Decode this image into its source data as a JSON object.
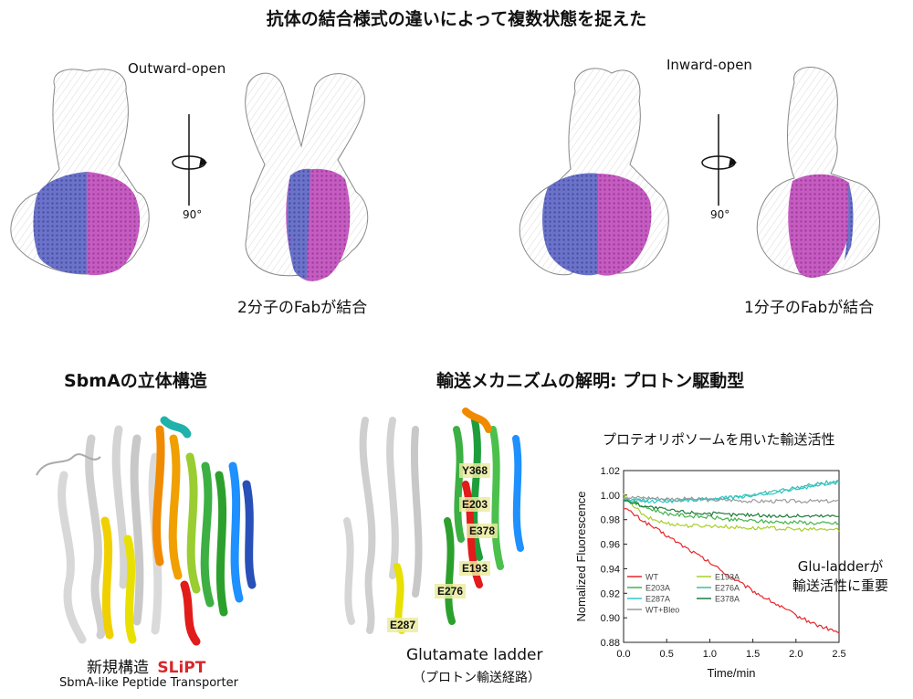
{
  "top": {
    "title": "抗体の結合様式の違いによって複数状態を捉えた",
    "panel_left": {
      "label": "Outward-open",
      "rotation": "90°",
      "caption": "2分子のFabが結合"
    },
    "panel_right": {
      "label": "Inward-open",
      "rotation": "90°",
      "caption": "1分子のFabが結合"
    }
  },
  "bottom_left": {
    "title": "SbmAの立体構造",
    "caption_prefix": "新規構造",
    "caption_name": "SLiPT",
    "caption_sub": "SbmA-like Peptide Transporter",
    "name_color": "#d8262b"
  },
  "bottom_middle": {
    "title": "輸送メカニズムの解明: プロトン駆動型",
    "residues": [
      "Y368",
      "E203",
      "E378",
      "E193",
      "E276",
      "E287"
    ],
    "caption": "Glutamate ladder",
    "caption_sub": "（プロトン輸送経路）"
  },
  "bottom_right": {
    "subtitle": "プロテオリポソームを用いた輸送活性",
    "annotation_line1": "Glu-ladderが",
    "annotation_line2": "輸送活性に重要"
  },
  "chart_data": {
    "type": "line",
    "xlabel": "Time/min",
    "ylabel": "Nomalized Fluorescence",
    "xlim": [
      0.0,
      2.5
    ],
    "ylim": [
      0.88,
      1.02
    ],
    "xticks": [
      "0.0",
      "0.5",
      "1.0",
      "1.5",
      "2.0",
      "2.5"
    ],
    "yticks": [
      "0.88",
      "0.90",
      "0.92",
      "0.94",
      "0.96",
      "0.98",
      "1.00",
      "1.02"
    ],
    "x": [
      0.0,
      0.25,
      0.5,
      0.75,
      1.0,
      1.25,
      1.5,
      1.75,
      2.0,
      2.25,
      2.5
    ],
    "series": [
      {
        "name": "WT",
        "color": "#e8262b",
        "values": [
          0.99,
          0.978,
          0.967,
          0.956,
          0.945,
          0.933,
          0.922,
          0.912,
          0.902,
          0.894,
          0.888
        ]
      },
      {
        "name": "E193A",
        "color": "#a8cf2a",
        "values": [
          1.0,
          0.982,
          0.977,
          0.975,
          0.975,
          0.974,
          0.973,
          0.973,
          0.972,
          0.972,
          0.972
        ]
      },
      {
        "name": "E203A",
        "color": "#43b34a",
        "values": [
          0.997,
          0.99,
          0.985,
          0.983,
          0.982,
          0.98,
          0.979,
          0.978,
          0.978,
          0.977,
          0.977
        ]
      },
      {
        "name": "E276A",
        "color": "#3cbcae",
        "values": [
          0.995,
          0.996,
          0.996,
          0.996,
          0.997,
          0.998,
          1.0,
          1.003,
          1.006,
          1.009,
          1.012
        ]
      },
      {
        "name": "E287A",
        "color": "#2ec8c8",
        "values": [
          0.997,
          0.995,
          0.995,
          0.996,
          0.997,
          0.998,
          1.0,
          1.002,
          1.005,
          1.008,
          1.01
        ]
      },
      {
        "name": "E378A",
        "color": "#1f7a3a",
        "values": [
          0.996,
          0.991,
          0.988,
          0.986,
          0.985,
          0.984,
          0.984,
          0.983,
          0.983,
          0.983,
          0.983
        ]
      },
      {
        "name": "WT+Bleo",
        "color": "#999999",
        "values": [
          0.998,
          0.998,
          0.997,
          0.997,
          0.996,
          0.996,
          0.995,
          0.995,
          0.995,
          0.995,
          0.995
        ]
      }
    ],
    "legend": "bottom-left",
    "grid": false
  }
}
